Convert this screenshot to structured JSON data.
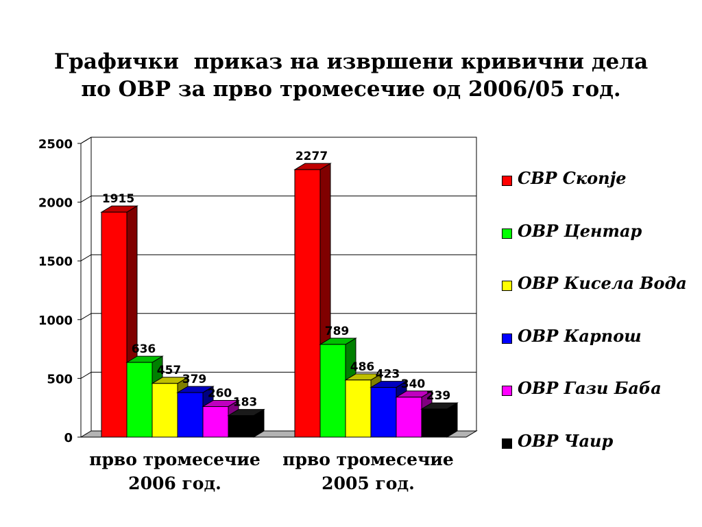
{
  "title": {
    "line1": "Графички  приказ на извршени кривични дела",
    "line2": "по ОВР за прво тромесечие од 2006/05 год."
  },
  "chart_data": {
    "type": "bar",
    "categories": [
      [
        "прво тромесечие",
        "2006 год."
      ],
      [
        "прво тромесечие",
        "2005 год."
      ]
    ],
    "series": [
      {
        "name": "СВР Скопје",
        "values": [
          1915,
          2277
        ],
        "color": "#ff0000"
      },
      {
        "name": "ОВР Центар",
        "values": [
          636,
          789
        ],
        "color": "#00ff00"
      },
      {
        "name": "ОВР Кисела Вода",
        "values": [
          457,
          486
        ],
        "color": "#ffff00"
      },
      {
        "name": "ОВР Карпош",
        "values": [
          379,
          423
        ],
        "color": "#0000ff"
      },
      {
        "name": "ОВР Гази Баба",
        "values": [
          260,
          340
        ],
        "color": "#ff00ff"
      },
      {
        "name": "ОВР Чаир",
        "values": [
          183,
          239
        ],
        "color": "#000000"
      }
    ],
    "ylim": [
      0,
      2500
    ],
    "yticks": [
      0,
      500,
      1000,
      1500,
      2000,
      2500
    ],
    "grid": true,
    "legend_position": "right",
    "style": "3d"
  }
}
